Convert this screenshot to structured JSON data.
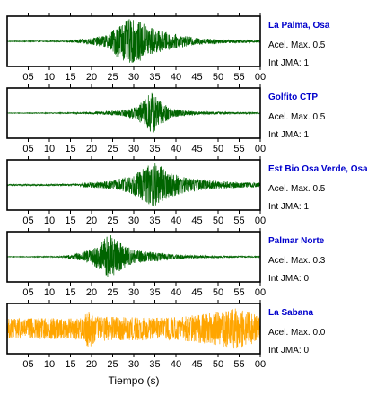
{
  "chart_data": {
    "type": "line",
    "xlabel": "Tiempo (s)",
    "tick_labels": [
      "05",
      "10",
      "15",
      "20",
      "25",
      "30",
      "35",
      "40",
      "45",
      "50",
      "55",
      "00"
    ],
    "xlim": [
      0,
      60
    ],
    "panels": [
      {
        "name": "La Palma, Osa",
        "acel_label": "Acel. Max. 0.5",
        "int_label": "Int JMA: 1",
        "color": "#006400",
        "envelope": [
          {
            "t": 0,
            "a": 0.015
          },
          {
            "t": 14,
            "a": 0.02
          },
          {
            "t": 16,
            "a": 0.07
          },
          {
            "t": 20,
            "a": 0.15
          },
          {
            "t": 24,
            "a": 0.3
          },
          {
            "t": 26,
            "a": 0.7
          },
          {
            "t": 29,
            "a": 1.0
          },
          {
            "t": 32,
            "a": 0.85
          },
          {
            "t": 35,
            "a": 0.55
          },
          {
            "t": 40,
            "a": 0.3
          },
          {
            "t": 45,
            "a": 0.15
          },
          {
            "t": 52,
            "a": 0.08
          },
          {
            "t": 60,
            "a": 0.05
          }
        ]
      },
      {
        "name": "Golfito CTP",
        "acel_label": "Acel. Max. 0.5",
        "int_label": "Int JMA: 1",
        "color": "#006400",
        "envelope": [
          {
            "t": 0,
            "a": 0.01
          },
          {
            "t": 15,
            "a": 0.02
          },
          {
            "t": 20,
            "a": 0.05
          },
          {
            "t": 27,
            "a": 0.12
          },
          {
            "t": 31,
            "a": 0.3
          },
          {
            "t": 33,
            "a": 0.75
          },
          {
            "t": 34.5,
            "a": 1.0
          },
          {
            "t": 36,
            "a": 0.6
          },
          {
            "t": 39,
            "a": 0.2
          },
          {
            "t": 45,
            "a": 0.07
          },
          {
            "t": 60,
            "a": 0.03
          }
        ]
      },
      {
        "name": "Est Bio Osa Verde, Osa",
        "acel_label": "Acel. Max. 0.5",
        "int_label": "Int JMA: 1",
        "color": "#006400",
        "envelope": [
          {
            "t": 0,
            "a": 0.03
          },
          {
            "t": 17,
            "a": 0.04
          },
          {
            "t": 18,
            "a": 0.1
          },
          {
            "t": 25,
            "a": 0.18
          },
          {
            "t": 30,
            "a": 0.45
          },
          {
            "t": 33,
            "a": 0.85
          },
          {
            "t": 35,
            "a": 1.0
          },
          {
            "t": 38,
            "a": 0.6
          },
          {
            "t": 42,
            "a": 0.35
          },
          {
            "t": 48,
            "a": 0.2
          },
          {
            "t": 55,
            "a": 0.12
          },
          {
            "t": 60,
            "a": 0.1
          }
        ]
      },
      {
        "name": "Palmar Norte",
        "acel_label": "Acel. Max. 0.3",
        "int_label": "Int JMA: 0",
        "color": "#006400",
        "envelope": [
          {
            "t": 0,
            "a": 0.01
          },
          {
            "t": 12,
            "a": 0.02
          },
          {
            "t": 14,
            "a": 0.06
          },
          {
            "t": 18,
            "a": 0.2
          },
          {
            "t": 21,
            "a": 0.45
          },
          {
            "t": 23,
            "a": 0.85
          },
          {
            "t": 24.5,
            "a": 1.0
          },
          {
            "t": 27,
            "a": 0.6
          },
          {
            "t": 30,
            "a": 0.3
          },
          {
            "t": 35,
            "a": 0.2
          },
          {
            "t": 40,
            "a": 0.1
          },
          {
            "t": 48,
            "a": 0.05
          },
          {
            "t": 60,
            "a": 0.02
          }
        ]
      },
      {
        "name": "La Sabana",
        "acel_label": "Acel. Max. 0.0",
        "int_label": "Int JMA: 0",
        "color": "#FFA500",
        "envelope": [
          {
            "t": 0,
            "a": 0.45
          },
          {
            "t": 18,
            "a": 0.5
          },
          {
            "t": 19.5,
            "a": 0.95
          },
          {
            "t": 21,
            "a": 0.55
          },
          {
            "t": 40,
            "a": 0.5
          },
          {
            "t": 50,
            "a": 0.75
          },
          {
            "t": 54,
            "a": 0.95
          },
          {
            "t": 58,
            "a": 0.7
          },
          {
            "t": 60,
            "a": 0.55
          }
        ]
      }
    ]
  }
}
